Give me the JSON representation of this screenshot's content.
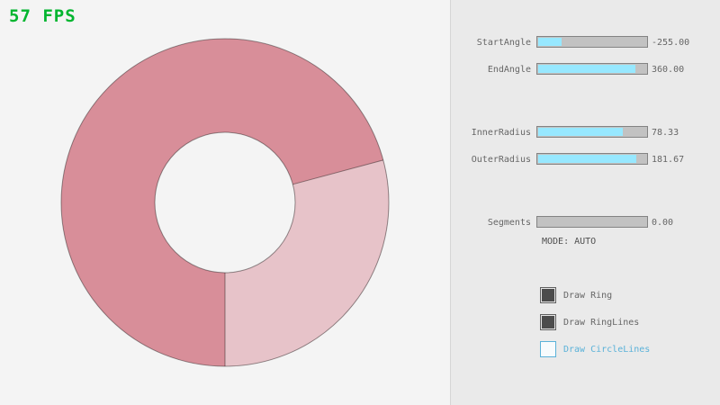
{
  "fps_label": "57 FPS",
  "controls": {
    "sliders": [
      {
        "label": "StartAngle",
        "value": "-255.00",
        "fill_pct": 21.7
      },
      {
        "label": "EndAngle",
        "value": "360.00",
        "fill_pct": 90.0
      },
      {
        "label": "InnerRadius",
        "value": "78.33",
        "fill_pct": 78.3
      },
      {
        "label": "OuterRadius",
        "value": "181.67",
        "fill_pct": 90.8
      },
      {
        "label": "Segments",
        "value": "0.00",
        "fill_pct": 0
      }
    ],
    "mode_label": "MODE: AUTO",
    "checkboxes": [
      {
        "label": "Draw Ring",
        "checked": true,
        "focused": false
      },
      {
        "label": "Draw RingLines",
        "checked": true,
        "focused": false
      },
      {
        "label": "Draw CircleLines",
        "checked": false,
        "focused": true
      }
    ]
  },
  "ring": {
    "start_angle": "-255.00",
    "end_angle": "360.00",
    "inner_radius": "78.33",
    "outer_radius": "181.67",
    "segments": "0.00"
  },
  "colors": {
    "bg-left": "#F4F4F4",
    "bg-right": "#EAEAEA",
    "divider": "#D6D6D6",
    "fps-green": "#00B52F",
    "ring-dark": "#D88E99",
    "ring-light": "#E7C3C9",
    "ring-line": "rgba(0,0,0,0.4)",
    "slider-fill": "#97E8FF",
    "slider-bg": "#C2C2C2",
    "slider-border": "#838383",
    "text-gray": "#666666",
    "mode-gray": "#4F4F4F",
    "check-dark": "#4C4C4C",
    "check-border": "#606060",
    "check-bg": "#E6E6E6",
    "focus-blue": "#5BB2D9",
    "focus-bg": "#F7FBFD"
  }
}
